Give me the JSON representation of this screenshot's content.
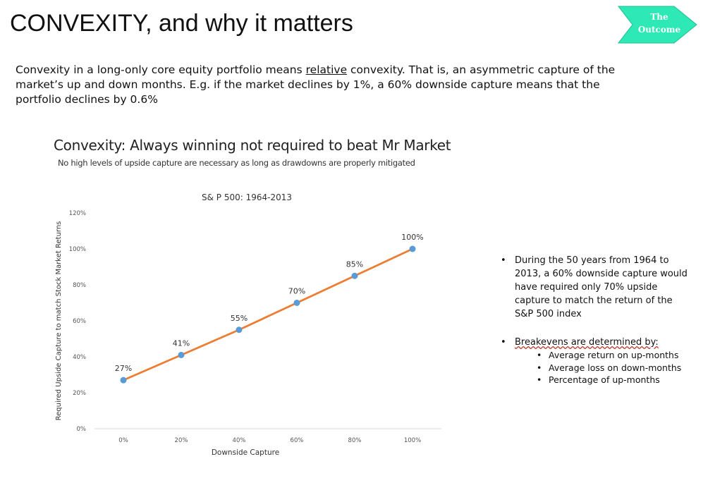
{
  "slide": {
    "title": "CONVEXITY, and why it matters",
    "nav_button": {
      "line1": "The",
      "line2": "Outcome",
      "color": "#2ee8b6"
    }
  },
  "intro": {
    "part1": "Convexity in a long-only core equity portfolio means ",
    "underlined": "relative",
    "part2": " convexity.  That is, an asymmetric capture of the market’s up and down months. E.g. if the market declines by 1%, a 60% downside capture means that the portfolio declines by 0.6%"
  },
  "chart_header": {
    "title": "Convexity: Always winning not required to beat Mr Market",
    "subtitle": "No high levels of upside capture are necessary as long as drawdowns are properly mitigated"
  },
  "chart_data": {
    "type": "line",
    "title": "S& P 500: 1964-2013",
    "xlabel": "Downside Capture",
    "ylabel": "Required Upside Capture to match Stock Market Returns",
    "x": [
      0,
      20,
      40,
      60,
      80,
      100
    ],
    "x_tick_labels": [
      "0%",
      "20%",
      "40%",
      "60%",
      "80%",
      "100%"
    ],
    "y_tick_labels": [
      "0%",
      "20%",
      "40%",
      "60%",
      "80%",
      "100%",
      "120%"
    ],
    "ylim": [
      0,
      120
    ],
    "grid": false,
    "series": [
      {
        "values": [
          27,
          41,
          55,
          70,
          85,
          100
        ],
        "labels": [
          "27%",
          "41%",
          "55%",
          "70%",
          "85%",
          "100%"
        ]
      }
    ],
    "colors": {
      "line": "#ed7d31",
      "marker": "#5b9bd5",
      "axis": "#d9d9d9"
    }
  },
  "notes": {
    "bullet_char": "•",
    "sub_bullet_char": "•",
    "point1": "During the 50 years from 1964 to 2013, a 60% downside capture would have required only 70% upside capture to match the return of the S&P 500 index",
    "point2_label": "Breakevens are determined by:",
    "point2_items": [
      "Average return on up-months",
      "Average loss on down-months",
      "Percentage of up-months"
    ]
  }
}
